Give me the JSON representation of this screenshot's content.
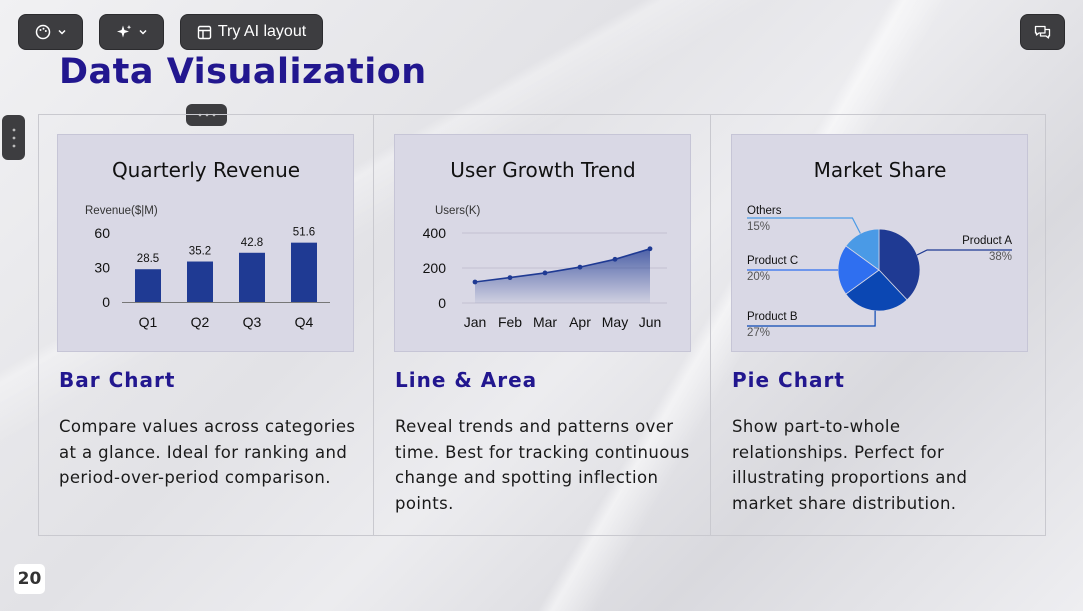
{
  "toolbar": {
    "theme_icon": "palette-icon",
    "ai_icon": "sparkles-icon",
    "layout_icon": "layout-icon",
    "try_ai_layout_label": "Try AI layout",
    "comment_icon": "comment-icon"
  },
  "slide": {
    "title": "Data Visualization",
    "page_number": "20"
  },
  "cards": [
    {
      "heading": "Bar Chart",
      "description": "Compare values across categories at a glance. Ideal for ranking and period-over-period comparison."
    },
    {
      "heading": "Line & Area",
      "description": "Reveal trends and patterns over time. Best for tracking continuous change and spotting inflection points."
    },
    {
      "heading": "Pie Chart",
      "description": "Show part-to-whole relationships. Perfect for illustrating proportions and market share distribution."
    }
  ],
  "chart_data": [
    {
      "type": "bar",
      "title": "Quarterly Revenue",
      "ylabel": "Revenue($|M)",
      "categories": [
        "Q1",
        "Q2",
        "Q3",
        "Q4"
      ],
      "values": [
        28.5,
        35.2,
        42.8,
        51.6
      ],
      "value_labels": [
        "28.5",
        "35.2",
        "42.8",
        "51.6"
      ],
      "yticks": [
        "0",
        "30",
        "60"
      ],
      "ylim": [
        0,
        60
      ],
      "color": "#1f3a93"
    },
    {
      "type": "area",
      "title": "User Growth Trend",
      "ylabel": "Users(K)",
      "categories": [
        "Jan",
        "Feb",
        "Mar",
        "Apr",
        "May",
        "Jun"
      ],
      "values": [
        120,
        145,
        172,
        205,
        250,
        310
      ],
      "yticks": [
        "0",
        "200",
        "400"
      ],
      "ylim": [
        0,
        400
      ],
      "color": "#1f3a93"
    },
    {
      "type": "pie",
      "title": "Market Share",
      "slices": [
        {
          "name": "Product A",
          "value": 38,
          "label": "38%",
          "color": "#1f3a93"
        },
        {
          "name": "Product B",
          "value": 27,
          "label": "27%",
          "color": "#0b47b3"
        },
        {
          "name": "Product C",
          "value": 20,
          "label": "20%",
          "color": "#2f6ff0"
        },
        {
          "name": "Others",
          "value": 15,
          "label": "15%",
          "color": "#4a9ae6"
        }
      ]
    }
  ]
}
